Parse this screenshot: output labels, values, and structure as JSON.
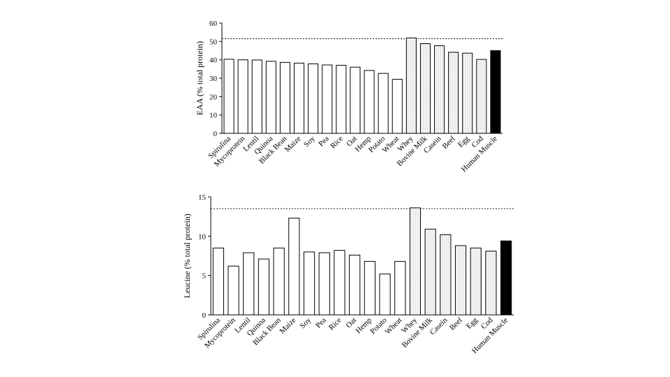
{
  "chart_data": [
    {
      "type": "bar",
      "ylabel": "EAA (% total protein)",
      "xlabel": "",
      "title": "",
      "ylim": [
        0,
        60
      ],
      "yticks": [
        0,
        10,
        20,
        30,
        40,
        50,
        60
      ],
      "reference_line": 51.5,
      "grid": false,
      "categories": [
        "Spirulina",
        "Mycoprotein",
        "Lentil",
        "Quinoa",
        "Black Bean",
        "Maize",
        "Soy",
        "Pea",
        "Rice",
        "Oat",
        "Hemp",
        "Potato",
        "Wheat",
        "Whey",
        "Bovine Milk",
        "Casein",
        "Beef",
        "Egg",
        "Cod",
        "Human Muscle"
      ],
      "values": [
        40.3,
        40.0,
        39.9,
        39.2,
        38.6,
        38.2,
        37.8,
        37.2,
        37.0,
        36.0,
        34.2,
        32.6,
        29.4,
        51.9,
        48.8,
        47.7,
        44.1,
        43.6,
        40.2,
        45.0
      ],
      "groups": [
        "plant",
        "plant",
        "plant",
        "plant",
        "plant",
        "plant",
        "plant",
        "plant",
        "plant",
        "plant",
        "plant",
        "plant",
        "plant",
        "animal",
        "animal",
        "animal",
        "animal",
        "animal",
        "animal",
        "human"
      ]
    },
    {
      "type": "bar",
      "ylabel": "Leucine (% total protein)",
      "xlabel": "",
      "title": "",
      "ylim": [
        0,
        15
      ],
      "yticks": [
        0,
        5,
        10,
        15
      ],
      "reference_line": 13.5,
      "grid": false,
      "categories": [
        "Spirulina",
        "Mycoprotein",
        "Lentil",
        "Quinoa",
        "Black Bean",
        "Maize",
        "Soy",
        "Pea",
        "Rice",
        "Oat",
        "Hemp",
        "Potato",
        "Wheat",
        "Whey",
        "Bovine Milk",
        "Casein",
        "Beef",
        "Egg",
        "Cod",
        "Human Muscle"
      ],
      "values": [
        8.5,
        6.2,
        7.9,
        7.1,
        8.5,
        12.3,
        8.0,
        7.9,
        8.2,
        7.6,
        6.8,
        5.2,
        6.8,
        13.6,
        10.9,
        10.2,
        8.8,
        8.5,
        8.1,
        9.4
      ],
      "groups": [
        "plant",
        "plant",
        "plant",
        "plant",
        "plant",
        "plant",
        "plant",
        "plant",
        "plant",
        "plant",
        "plant",
        "plant",
        "plant",
        "animal",
        "animal",
        "animal",
        "animal",
        "animal",
        "animal",
        "human"
      ]
    }
  ],
  "colors": {
    "plant_fill": "#ffffff",
    "animal_fill": "#f4f4f4",
    "human_fill": "#000000",
    "stroke": "#000000"
  }
}
